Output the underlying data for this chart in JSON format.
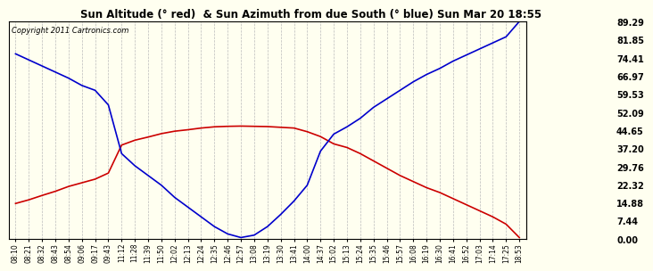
{
  "title": "Sun Altitude (° red)  & Sun Azimuth from due South (° blue) Sun Mar 20 18:55",
  "copyright_text": "Copyright 2011 Cartronics.com",
  "ymin": 0.0,
  "ymax": 89.29,
  "yticks": [
    0.0,
    7.44,
    14.88,
    22.32,
    29.76,
    37.2,
    44.65,
    52.09,
    59.53,
    66.97,
    74.41,
    81.85,
    89.29
  ],
  "bg_color": "#fffff0",
  "grid_color": "#bbbbbb",
  "line_color_red": "#cc0000",
  "line_color_blue": "#0000cc",
  "xtick_labels": [
    "08:10",
    "08:21",
    "08:32",
    "08:43",
    "08:54",
    "09:06",
    "09:17",
    "09:43",
    "11:12",
    "11:28",
    "11:39",
    "11:50",
    "12:02",
    "12:13",
    "12:24",
    "12:35",
    "12:46",
    "12:57",
    "13:08",
    "13:19",
    "13:30",
    "13:41",
    "14:00",
    "14:37",
    "15:02",
    "15:13",
    "15:24",
    "15:35",
    "15:46",
    "15:57",
    "16:08",
    "16:19",
    "16:30",
    "16:41",
    "16:52",
    "17:03",
    "17:14",
    "17:25",
    "18:53"
  ],
  "red_y": [
    14.5,
    16.0,
    17.8,
    19.5,
    21.5,
    23.0,
    24.5,
    27.0,
    38.5,
    40.5,
    41.8,
    43.2,
    44.2,
    44.8,
    45.5,
    46.0,
    46.2,
    46.3,
    46.2,
    46.1,
    45.8,
    45.5,
    44.0,
    42.0,
    39.0,
    37.5,
    35.0,
    32.0,
    29.0,
    26.0,
    23.5,
    21.0,
    19.0,
    16.5,
    14.0,
    11.5,
    9.0,
    6.0,
    0.5
  ],
  "blue_y": [
    76.0,
    73.5,
    71.0,
    68.5,
    66.0,
    63.0,
    61.0,
    55.0,
    35.0,
    30.0,
    26.0,
    22.0,
    17.0,
    13.0,
    9.0,
    5.0,
    2.0,
    0.5,
    1.5,
    5.0,
    10.0,
    15.5,
    22.0,
    36.0,
    43.0,
    46.0,
    49.5,
    54.0,
    57.5,
    61.0,
    64.5,
    67.5,
    70.0,
    73.0,
    75.5,
    78.0,
    80.5,
    83.0,
    89.29
  ]
}
